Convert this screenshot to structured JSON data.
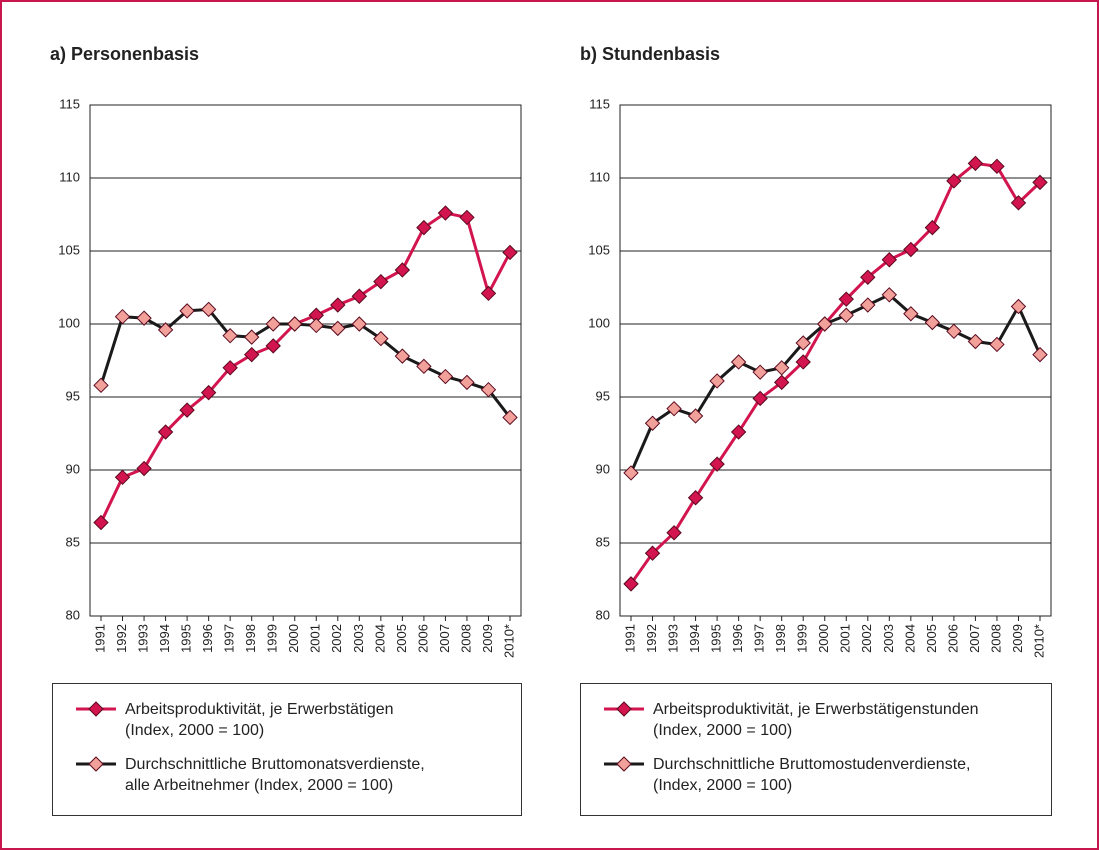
{
  "chart_data": [
    {
      "type": "line",
      "title": "a) Personenbasis",
      "categories": [
        "1991",
        "1992",
        "1993",
        "1994",
        "1995",
        "1996",
        "1997",
        "1998",
        "1999",
        "2000",
        "2001",
        "2002",
        "2003",
        "2004",
        "2005",
        "2006",
        "2007",
        "2008",
        "2009",
        "2010*"
      ],
      "ylim": [
        80,
        115
      ],
      "yticks": [
        80,
        85,
        90,
        95,
        100,
        105,
        110,
        115
      ],
      "grid": true,
      "series": [
        {
          "name": "Arbeitsproduktivität, je Erwerbstätigen\n(Index, 2000 = 100)",
          "color": "#d2144f",
          "marker_color": "#d2144f",
          "values": [
            86.4,
            89.5,
            90.1,
            92.6,
            94.1,
            95.3,
            97.0,
            97.9,
            98.5,
            100.0,
            100.6,
            101.3,
            101.9,
            102.9,
            103.7,
            106.6,
            107.6,
            107.3,
            102.1,
            104.9
          ]
        },
        {
          "name": "Durchschnittliche Bruttomonatsverdienste,\nalle Arbeitnehmer (Index, 2000 = 100)",
          "color": "#1a1a1a",
          "marker_color": "#f2a09a",
          "values": [
            95.8,
            100.5,
            100.4,
            99.6,
            100.9,
            101.0,
            99.2,
            99.1,
            100.0,
            100.0,
            99.9,
            99.7,
            100.0,
            99.0,
            97.8,
            97.1,
            96.4,
            96.0,
            95.5,
            93.6
          ]
        }
      ]
    },
    {
      "type": "line",
      "title": "b) Stundenbasis",
      "categories": [
        "1991",
        "1992",
        "1993",
        "1994",
        "1995",
        "1996",
        "1997",
        "1998",
        "1999",
        "2000",
        "2001",
        "2002",
        "2003",
        "2004",
        "2005",
        "2006",
        "2007",
        "2008",
        "2009",
        "2010*"
      ],
      "ylim": [
        80,
        115
      ],
      "yticks": [
        80,
        85,
        90,
        95,
        100,
        105,
        110,
        115
      ],
      "grid": true,
      "series": [
        {
          "name": "Arbeitsproduktivität, je Erwerbstätigenstunden\n(Index, 2000 = 100)",
          "color": "#d2144f",
          "marker_color": "#d2144f",
          "values": [
            82.2,
            84.3,
            85.7,
            88.1,
            90.4,
            92.6,
            94.9,
            96.0,
            97.4,
            100.0,
            101.7,
            103.2,
            104.4,
            105.1,
            106.6,
            109.8,
            111.0,
            110.8,
            108.3,
            109.7
          ]
        },
        {
          "name": "Durchschnittliche Bruttomostudenverdienste,\n(Index, 2000 = 100)",
          "color": "#1a1a1a",
          "marker_color": "#f2a09a",
          "values": [
            89.8,
            93.2,
            94.2,
            93.7,
            96.1,
            97.4,
            96.7,
            97.0,
            98.7,
            100.0,
            100.6,
            101.3,
            102.0,
            100.7,
            100.1,
            99.5,
            98.8,
            98.6,
            101.2,
            97.9
          ]
        }
      ]
    }
  ]
}
